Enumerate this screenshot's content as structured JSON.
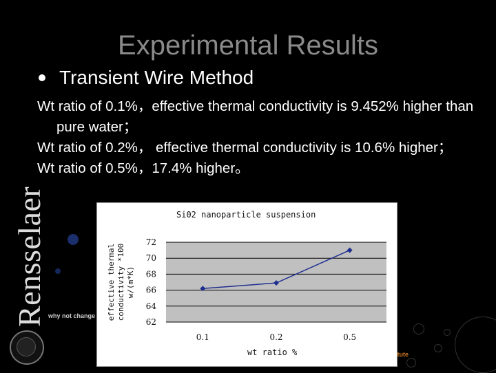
{
  "slide": {
    "title": "Experimental Results",
    "bullet": "Transient Wire Method",
    "paragraphs": [
      "Wt ratio of 0.1%，effective thermal conductivity is 9.452% higher than pure water；",
      "Wt ratio of 0.2%， effective thermal conductivity is 10.6% higher；",
      "Wt ratio of 0.5%，17.4% higher。"
    ]
  },
  "branding": {
    "wordmark": "Rensselaer",
    "tagline": "why not change the"
  },
  "colors": {
    "background": "#000000",
    "title": "#8a8a8a",
    "text": "#ffffff",
    "series": "#1f2f8f",
    "plot_area": "#c0c0c0"
  },
  "chart_data": {
    "type": "line",
    "title": "Si02 nanoparticle suspension",
    "xlabel": "wt ratio %",
    "ylabel_lines": [
      "effective thermal",
      "conductivity *100",
      "w/(m*K)"
    ],
    "categories": [
      "0.1",
      "0.2",
      "0.5"
    ],
    "values": [
      66.2,
      66.9,
      71.0
    ],
    "ylim": [
      62,
      72
    ],
    "yticks": [
      62,
      64,
      66,
      68,
      70,
      72
    ],
    "grid": true,
    "legend": "none"
  }
}
